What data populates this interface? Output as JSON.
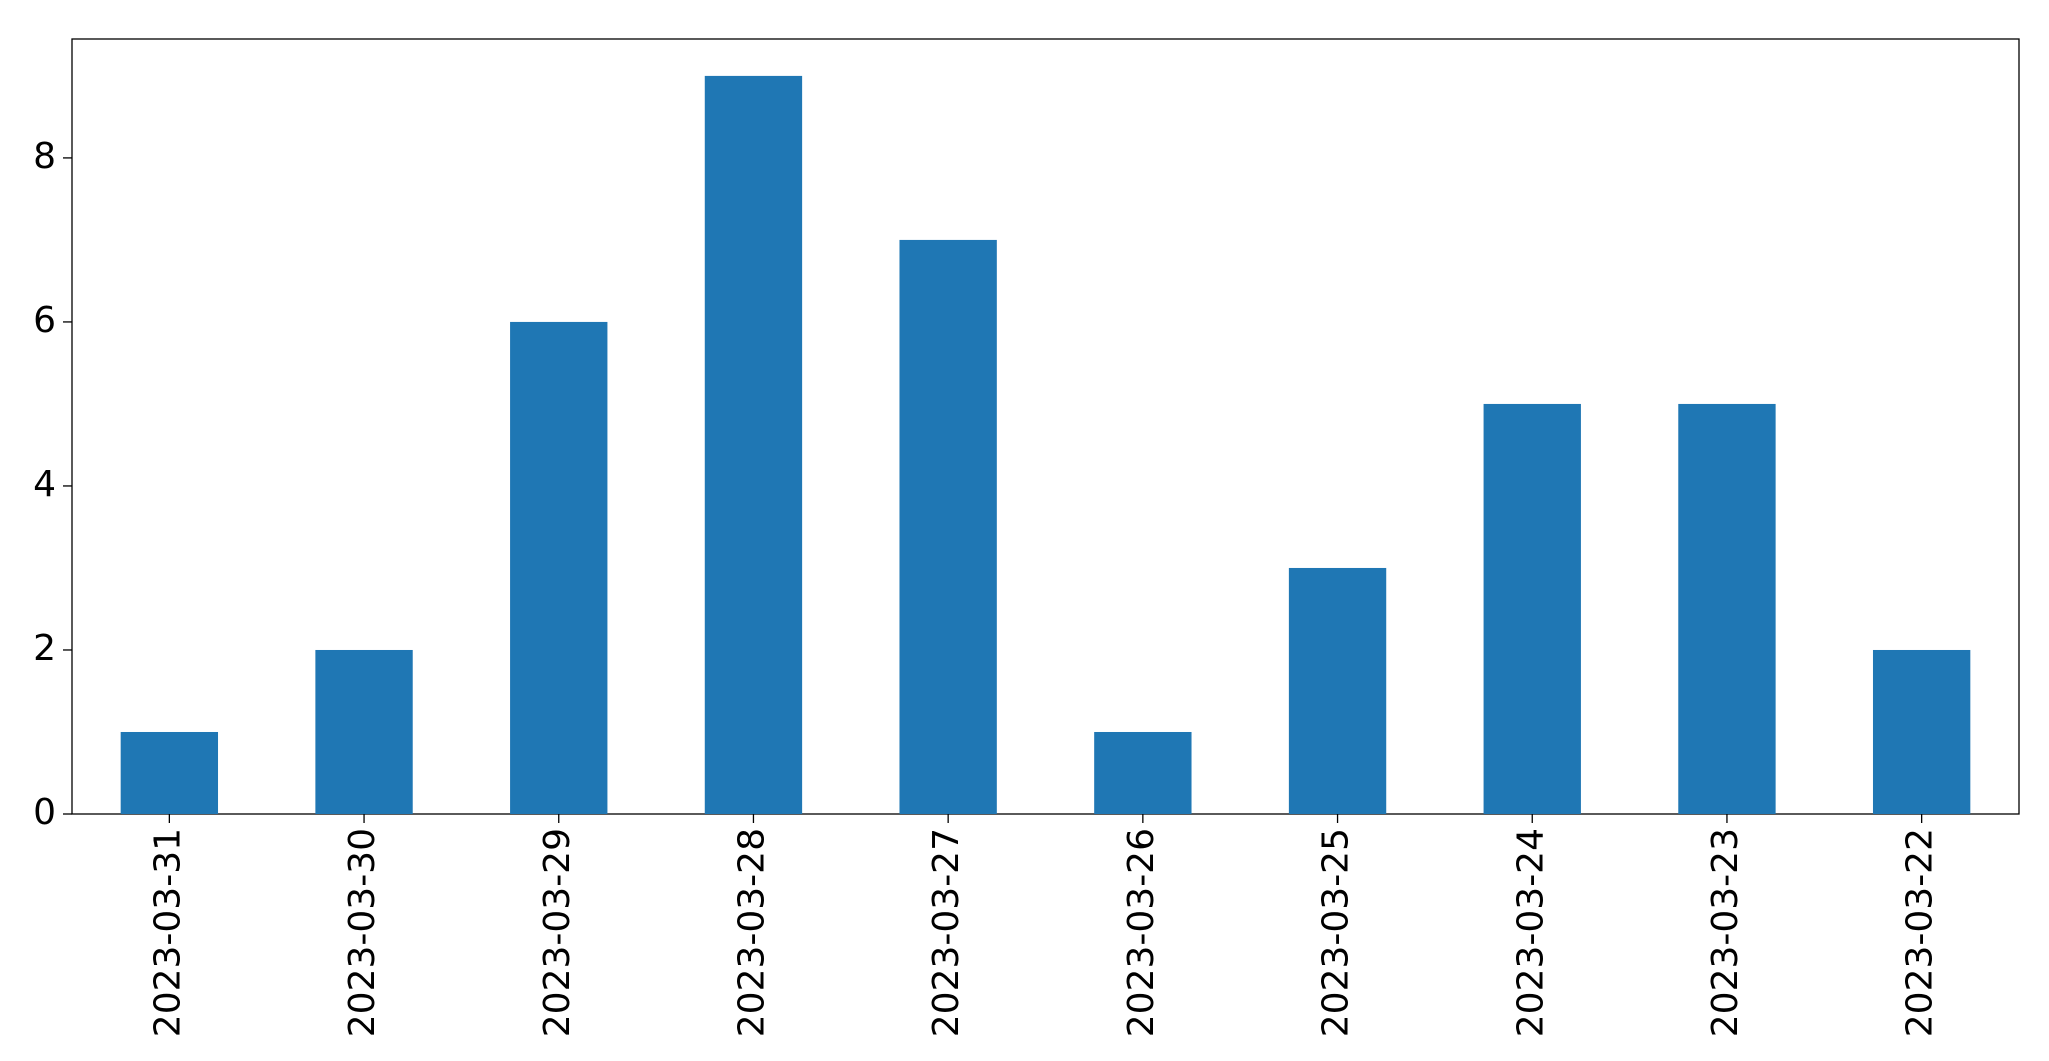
{
  "chart_data": {
    "type": "bar",
    "categories": [
      "2023-03-31",
      "2023-03-30",
      "2023-03-29",
      "2023-03-28",
      "2023-03-27",
      "2023-03-26",
      "2023-03-25",
      "2023-03-24",
      "2023-03-23",
      "2023-03-22"
    ],
    "values": [
      1,
      2,
      6,
      9,
      7,
      1,
      3,
      5,
      5,
      2
    ],
    "color": "#1f77b4",
    "ylim": [
      0,
      9.45
    ],
    "yticks": [
      0,
      2,
      4,
      6,
      8
    ],
    "grid": false
  }
}
